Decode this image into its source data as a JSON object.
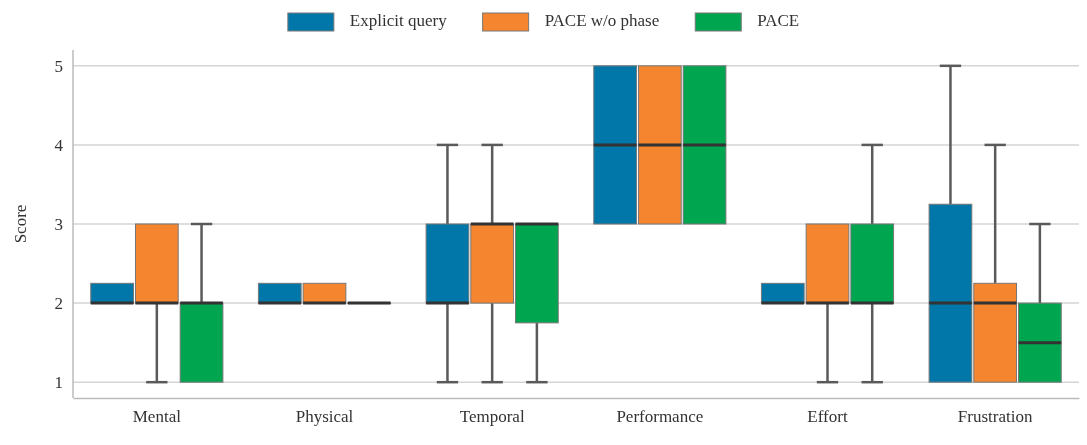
{
  "chart_data": {
    "type": "box",
    "ylabel": "Score",
    "categories": [
      "Mental",
      "Physical",
      "Temporal",
      "Performance",
      "Effort",
      "Frustration"
    ],
    "ylim": [
      0.8,
      5.2
    ],
    "yticks": [
      1,
      2,
      3,
      4,
      5
    ],
    "grid": "y",
    "legend": "top",
    "series": [
      {
        "name": "Explicit query",
        "color": "#0077a8",
        "boxes": [
          {
            "low": 2,
            "q1": 2,
            "median": 2,
            "q3": 2.25,
            "high": 2.25
          },
          {
            "low": 2,
            "q1": 2,
            "median": 2,
            "q3": 2.25,
            "high": 2.25
          },
          {
            "low": 1,
            "q1": 2,
            "median": 2,
            "q3": 3,
            "high": 4
          },
          {
            "low": 3,
            "q1": 3,
            "median": 4,
            "q3": 5,
            "high": 5
          },
          {
            "low": 2,
            "q1": 2,
            "median": 2,
            "q3": 2.25,
            "high": 2.25
          },
          {
            "low": 1,
            "q1": 1,
            "median": 2,
            "q3": 3.25,
            "high": 5
          }
        ]
      },
      {
        "name": "PACE w/o phase",
        "color": "#f5862f",
        "boxes": [
          {
            "low": 1,
            "q1": 2,
            "median": 2,
            "q3": 3,
            "high": 3
          },
          {
            "low": 2,
            "q1": 2,
            "median": 2,
            "q3": 2.25,
            "high": 2.25
          },
          {
            "low": 1,
            "q1": 2,
            "median": 3,
            "q3": 3,
            "high": 4
          },
          {
            "low": 3,
            "q1": 3,
            "median": 4,
            "q3": 5,
            "high": 5
          },
          {
            "low": 1,
            "q1": 2,
            "median": 2,
            "q3": 3,
            "high": 3
          },
          {
            "low": 1,
            "q1": 1,
            "median": 2,
            "q3": 2.25,
            "high": 4
          }
        ]
      },
      {
        "name": "PACE",
        "color": "#00a54f",
        "boxes": [
          {
            "low": 1,
            "q1": 1,
            "median": 2,
            "q3": 2,
            "high": 3
          },
          {
            "low": 2,
            "q1": 2,
            "median": 2,
            "q3": 2,
            "high": 2
          },
          {
            "low": 1,
            "q1": 1.75,
            "median": 3,
            "q3": 3,
            "high": 3
          },
          {
            "low": 3,
            "q1": 3,
            "median": 4,
            "q3": 5,
            "high": 5
          },
          {
            "low": 1,
            "q1": 2,
            "median": 2,
            "q3": 3,
            "high": 4
          },
          {
            "low": 1,
            "q1": 1,
            "median": 1.5,
            "q3": 2,
            "high": 3
          }
        ]
      }
    ]
  }
}
